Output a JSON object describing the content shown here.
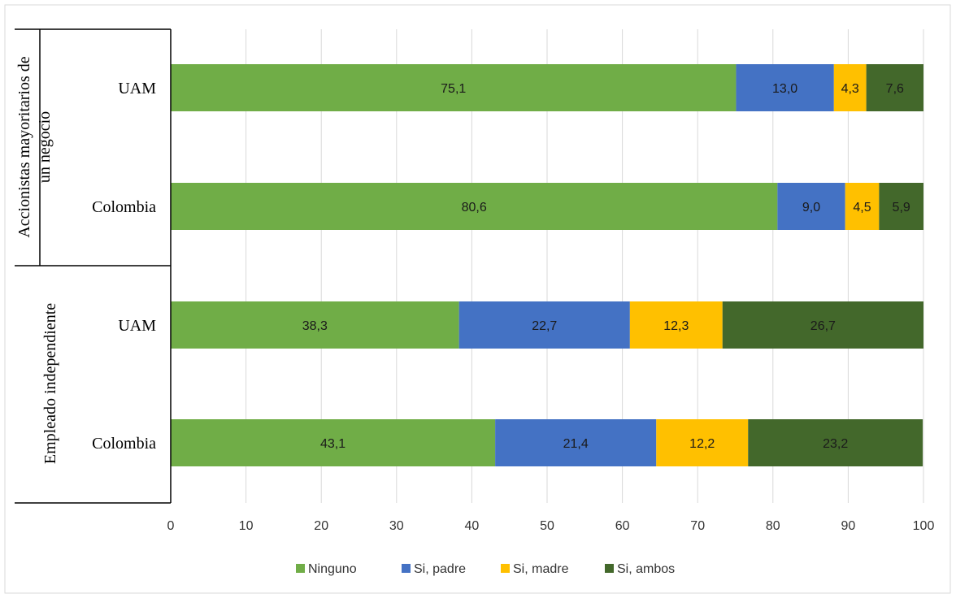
{
  "chart_data": {
    "type": "bar",
    "orientation": "horizontal",
    "stacked": true,
    "title": "",
    "xlabel": "",
    "ylabel": "",
    "xlim": [
      0,
      100
    ],
    "x_ticks": [
      0,
      10,
      20,
      30,
      40,
      50,
      60,
      70,
      80,
      90,
      100
    ],
    "grid": "vertical",
    "legend_position": "bottom",
    "groups": [
      {
        "label_lines": [
          "Accionistas mayoritarios de",
          "un negocio"
        ],
        "categories": [
          "UAM",
          "Colombia"
        ]
      },
      {
        "label_lines": [
          "Empleado independiente"
        ],
        "categories": [
          "UAM",
          "Colombia"
        ]
      }
    ],
    "categories": [
      "UAM",
      "Colombia",
      "UAM",
      "Colombia"
    ],
    "series": [
      {
        "name": "Ninguno",
        "color": "#70ad47",
        "values": [
          75.1,
          80.6,
          38.3,
          43.1
        ],
        "labels": [
          "75,1",
          "80,6",
          "38,3",
          "43,1"
        ]
      },
      {
        "name": "Si, padre",
        "color": "#4472c4",
        "values": [
          13.0,
          9.0,
          22.7,
          21.4
        ],
        "labels": [
          "13,0",
          "9,0",
          "22,7",
          "21,4"
        ]
      },
      {
        "name": "Si, madre",
        "color": "#ffc000",
        "values": [
          4.3,
          4.5,
          12.3,
          12.2
        ],
        "labels": [
          "4,3",
          "4,5",
          "12,3",
          "12,2"
        ]
      },
      {
        "name": "Si, ambos",
        "color": "#43682b",
        "values": [
          7.6,
          5.9,
          26.7,
          23.2
        ],
        "labels": [
          "7,6",
          "5,9",
          "26,7",
          "23,2"
        ]
      }
    ]
  }
}
